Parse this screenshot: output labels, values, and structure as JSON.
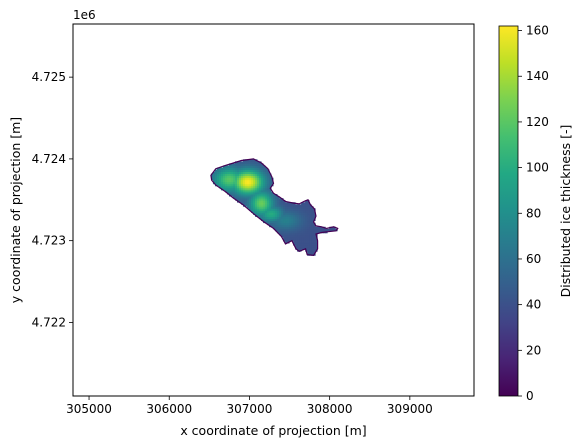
{
  "chart_data": {
    "type": "heatmap",
    "xlabel": "x coordinate of projection [m]",
    "ylabel": "y coordinate of projection [m]",
    "y_offset_label": "1e6",
    "xlim": [
      304800,
      309800
    ],
    "ylim": [
      4721100,
      4725650
    ],
    "x_ticks": [
      305000,
      306000,
      307000,
      308000,
      309000
    ],
    "x_tick_labels": [
      "305000",
      "306000",
      "307000",
      "308000",
      "309000"
    ],
    "y_ticks": [
      4722000,
      4723000,
      4724000,
      4725000
    ],
    "y_tick_labels": [
      "4.722",
      "4.723",
      "4.724",
      "4.725"
    ],
    "grid": false,
    "colormap": "viridis",
    "colorbar": {
      "label": "Distributed ice thickness [-]",
      "min": 0,
      "max": 162,
      "ticks": [
        0,
        20,
        40,
        60,
        80,
        100,
        120,
        140,
        160
      ],
      "tick_labels": [
        "0",
        "20",
        "40",
        "60",
        "80",
        "100",
        "120",
        "140",
        "160"
      ]
    },
    "field": {
      "description_values": "glacier ice thickness raster; thickest (~160) near x=307000, y=4.7237e6",
      "outline": [
        [
          306520,
          4723800
        ],
        [
          306580,
          4723880
        ],
        [
          306700,
          4723920
        ],
        [
          306800,
          4723950
        ],
        [
          306900,
          4723980
        ],
        [
          307050,
          4724000
        ],
        [
          307150,
          4723950
        ],
        [
          307230,
          4723880
        ],
        [
          307280,
          4723780
        ],
        [
          307300,
          4723700
        ],
        [
          307260,
          4723640
        ],
        [
          307300,
          4723580
        ],
        [
          307380,
          4723530
        ],
        [
          307450,
          4723480
        ],
        [
          307550,
          4723460
        ],
        [
          307620,
          4723450
        ],
        [
          307680,
          4723480
        ],
        [
          307730,
          4723500
        ],
        [
          307760,
          4723440
        ],
        [
          307810,
          4723390
        ],
        [
          307830,
          4723300
        ],
        [
          307800,
          4723230
        ],
        [
          307830,
          4723180
        ],
        [
          307900,
          4723170
        ],
        [
          307960,
          4723150
        ],
        [
          308050,
          4723170
        ],
        [
          308100,
          4723150
        ],
        [
          308080,
          4723120
        ],
        [
          307980,
          4723110
        ],
        [
          307900,
          4723100
        ],
        [
          307830,
          4723080
        ],
        [
          307850,
          4723000
        ],
        [
          307850,
          4722900
        ],
        [
          307800,
          4722820
        ],
        [
          307720,
          4722830
        ],
        [
          307700,
          4722900
        ],
        [
          307620,
          4722870
        ],
        [
          307580,
          4722900
        ],
        [
          307530,
          4723000
        ],
        [
          307450,
          4722960
        ],
        [
          307400,
          4723050
        ],
        [
          307300,
          4723150
        ],
        [
          307180,
          4723230
        ],
        [
          307050,
          4723330
        ],
        [
          306920,
          4723440
        ],
        [
          306800,
          4723520
        ],
        [
          306700,
          4723600
        ],
        [
          306580,
          4723680
        ],
        [
          306530,
          4723740
        ]
      ],
      "peaks": [
        {
          "x": 306980,
          "y": 4723720,
          "value": 162,
          "rx": 200,
          "ry": 150
        },
        {
          "x": 306750,
          "y": 4723750,
          "value": 120,
          "rx": 200,
          "ry": 150
        },
        {
          "x": 307150,
          "y": 4723460,
          "value": 125,
          "rx": 150,
          "ry": 150
        },
        {
          "x": 307270,
          "y": 4723330,
          "value": 100,
          "rx": 150,
          "ry": 100
        },
        {
          "x": 307450,
          "y": 4723250,
          "value": 70,
          "rx": 200,
          "ry": 120
        },
        {
          "x": 307700,
          "y": 4723000,
          "value": 40,
          "rx": 200,
          "ry": 150
        }
      ],
      "edge_value": 40
    }
  }
}
